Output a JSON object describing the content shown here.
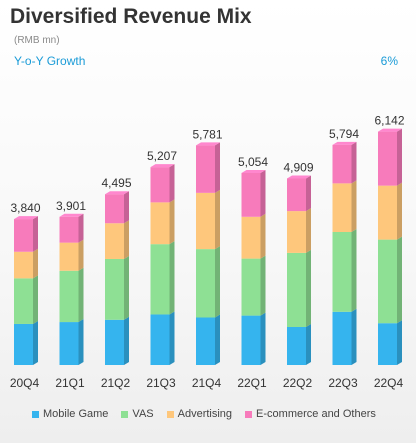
{
  "header": {
    "title": "Diversified Revenue Mix",
    "unit": "(RMB mn)",
    "growth_label": "Y-o-Y Growth",
    "growth_value": "6%"
  },
  "colors": {
    "mobile_game": "#35b4ee",
    "vas": "#8ee094",
    "advertising": "#fec77c",
    "ecommerce": "#f77bbb"
  },
  "chart_data": {
    "type": "bar",
    "stacked": true,
    "categories": [
      "20Q4",
      "21Q1",
      "21Q2",
      "21Q3",
      "21Q4",
      "22Q1",
      "22Q2",
      "22Q3",
      "22Q4"
    ],
    "totals": [
      3840,
      3901,
      4495,
      5207,
      5781,
      5054,
      4909,
      5794,
      6142
    ],
    "total_labels": [
      "3,840",
      "3,901",
      "4,495",
      "5,207",
      "5,781",
      "5,054",
      "4,909",
      "5,794",
      "6,142"
    ],
    "series": [
      {
        "name": "Mobile Game",
        "values": [
          1080,
          1130,
          1190,
          1330,
          1250,
          1300,
          1000,
          1400,
          1100
        ]
      },
      {
        "name": "VAS",
        "values": [
          1200,
          1350,
          1600,
          1850,
          1800,
          1500,
          1950,
          2100,
          2200
        ]
      },
      {
        "name": "Advertising",
        "values": [
          700,
          740,
          940,
          1100,
          1480,
          1100,
          1100,
          1280,
          1420
        ]
      },
      {
        "name": "E-commerce and Others",
        "values": [
          860,
          681,
          765,
          927,
          1251,
          1154,
          859,
          1014,
          1422
        ]
      }
    ],
    "ylim": [
      0,
      6500
    ],
    "legend_position": "bottom"
  }
}
